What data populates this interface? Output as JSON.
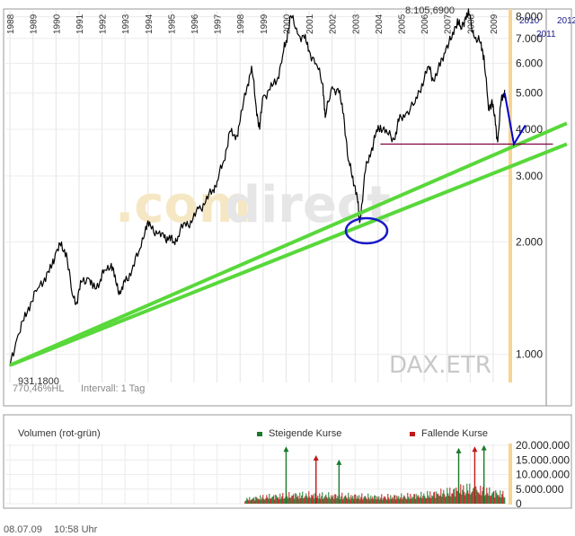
{
  "chart_data": [
    {
      "type": "line",
      "title": "",
      "watermark": {
        "part1": ".com",
        "part2": "direct"
      },
      "instrument": "DAX.ETR",
      "scale": "log",
      "ylim": [
        850,
        8300
      ],
      "y_ticks": [
        {
          "value": 1000,
          "label": "1.000"
        },
        {
          "value": 2000,
          "label": "2.000"
        },
        {
          "value": 3000,
          "label": "3.000"
        },
        {
          "value": 4000,
          "label": "4.000"
        },
        {
          "value": 5000,
          "label": "5.000"
        },
        {
          "value": 6000,
          "label": "6.000"
        },
        {
          "value": 7000,
          "label": "7.000"
        },
        {
          "value": 8000,
          "label": "8.000"
        }
      ],
      "x_year_labels": [
        "1988",
        "1989",
        "1990",
        "1991",
        "1992",
        "1993",
        "1994",
        "1995",
        "1996",
        "1997",
        "1998",
        "1999",
        "2000",
        "2001",
        "2002",
        "2003",
        "2004",
        "2005",
        "2006",
        "2007",
        "2008",
        "2009"
      ],
      "future_year_labels": [
        "2010",
        "2011",
        "2012"
      ],
      "high_label": "8.105,6900",
      "low_label": "931,1800",
      "footer_left": "770,46%HL",
      "footer_interval": "Intervall: 1 Tag",
      "grid": true,
      "series": [
        {
          "color": "#000000",
          "points": [
            [
              1988.0,
              931
            ],
            [
              1988.3,
              1100
            ],
            [
              1988.6,
              1230
            ],
            [
              1988.9,
              1380
            ],
            [
              1989.2,
              1500
            ],
            [
              1989.5,
              1600
            ],
            [
              1989.8,
              1700
            ],
            [
              1990.0,
              1880
            ],
            [
              1990.2,
              1950
            ],
            [
              1990.45,
              1870
            ],
            [
              1990.7,
              1450
            ],
            [
              1990.9,
              1380
            ],
            [
              1991.1,
              1560
            ],
            [
              1991.4,
              1600
            ],
            [
              1991.6,
              1500
            ],
            [
              1991.9,
              1560
            ],
            [
              1992.1,
              1680
            ],
            [
              1992.4,
              1750
            ],
            [
              1992.6,
              1560
            ],
            [
              1992.8,
              1450
            ],
            [
              1993.0,
              1560
            ],
            [
              1993.3,
              1680
            ],
            [
              1993.6,
              1880
            ],
            [
              1993.9,
              2200
            ],
            [
              1994.1,
              2220
            ],
            [
              1994.4,
              2100
            ],
            [
              1994.7,
              2050
            ],
            [
              1994.9,
              2050
            ],
            [
              1995.1,
              2000
            ],
            [
              1995.3,
              2070
            ],
            [
              1995.6,
              2250
            ],
            [
              1995.9,
              2250
            ],
            [
              1996.2,
              2450
            ],
            [
              1996.5,
              2550
            ],
            [
              1996.8,
              2750
            ],
            [
              1997.0,
              2900
            ],
            [
              1997.3,
              3300
            ],
            [
              1997.55,
              3950
            ],
            [
              1997.8,
              3750
            ],
            [
              1998.0,
              4200
            ],
            [
              1998.3,
              5200
            ],
            [
              1998.5,
              5900
            ],
            [
              1998.7,
              4600
            ],
            [
              1998.85,
              4000
            ],
            [
              1999.0,
              4900
            ],
            [
              1999.3,
              5100
            ],
            [
              1999.6,
              5400
            ],
            [
              1999.85,
              6300
            ],
            [
              2000.0,
              6900
            ],
            [
              2000.2,
              8050
            ],
            [
              2000.5,
              7200
            ],
            [
              2000.8,
              7000
            ],
            [
              2001.0,
              6500
            ],
            [
              2001.3,
              6000
            ],
            [
              2001.6,
              5300
            ],
            [
              2001.7,
              4300
            ],
            [
              2002.0,
              5200
            ],
            [
              2002.3,
              5000
            ],
            [
              2002.5,
              4400
            ],
            [
              2002.7,
              3300
            ],
            [
              2002.9,
              3000
            ],
            [
              2003.1,
              2600
            ],
            [
              2003.2,
              2250
            ],
            [
              2003.45,
              3100
            ],
            [
              2003.7,
              3500
            ],
            [
              2003.9,
              3900
            ],
            [
              2004.1,
              4100
            ],
            [
              2004.4,
              3900
            ],
            [
              2004.7,
              3750
            ],
            [
              2004.9,
              4200
            ],
            [
              2005.2,
              4400
            ],
            [
              2005.6,
              4700
            ],
            [
              2005.9,
              5300
            ],
            [
              2006.2,
              5900
            ],
            [
              2006.4,
              5400
            ],
            [
              2006.7,
              5900
            ],
            [
              2006.95,
              6600
            ],
            [
              2007.2,
              7000
            ],
            [
              2007.45,
              7900
            ],
            [
              2007.6,
              7400
            ],
            [
              2007.8,
              8000
            ],
            [
              2007.95,
              8100
            ],
            [
              2008.2,
              7000
            ],
            [
              2008.45,
              6800
            ],
            [
              2008.6,
              6300
            ],
            [
              2008.8,
              4500
            ],
            [
              2008.95,
              4800
            ],
            [
              2009.1,
              4100
            ],
            [
              2009.2,
              3700
            ],
            [
              2009.35,
              4800
            ],
            [
              2009.5,
              5100
            ]
          ]
        },
        {
          "color": "#58d83a",
          "points": [
            [
              1988.0,
              935
            ],
            [
              2012.2,
              4150
            ]
          ]
        },
        {
          "color": "#58d83a",
          "points": [
            [
              1988.1,
              940
            ],
            [
              2012.2,
              3650
            ]
          ]
        },
        {
          "color": "#800040",
          "points": [
            [
              2004.1,
              3650
            ],
            [
              2011.6,
              3650
            ]
          ]
        },
        {
          "color": "#0000cc",
          "points": [
            [
              2009.5,
              5000
            ],
            [
              2009.9,
              3650
            ],
            [
              2010.4,
              4100
            ]
          ]
        }
      ]
    },
    {
      "type": "bar",
      "title": "Volumen (rot-grün)",
      "legend": [
        {
          "name": "Steigende Kurse",
          "color": "#1a7a2a"
        },
        {
          "name": "Fallende Kurse",
          "color": "#c01818"
        }
      ],
      "ylim": [
        0,
        20000
      ],
      "y_ticks": [
        {
          "value": 0,
          "label": "0"
        },
        {
          "value": 5000,
          "label": "5.000.000"
        },
        {
          "value": 10000,
          "label": "10.000.000"
        },
        {
          "value": 15000,
          "label": "15.000.000"
        },
        {
          "value": 20000,
          "label": "20.000.000"
        }
      ],
      "volume_start_year": 1998.2,
      "volume_levels": [
        [
          1998.2,
          1500
        ],
        [
          1999.0,
          2300
        ],
        [
          2000.0,
          2800
        ],
        [
          2000.5,
          3000
        ],
        [
          2001.0,
          3000
        ],
        [
          2002.0,
          2700
        ],
        [
          2003.0,
          2600
        ],
        [
          2004.0,
          2300
        ],
        [
          2005.0,
          2500
        ],
        [
          2006.0,
          3000
        ],
        [
          2007.0,
          4000
        ],
        [
          2007.8,
          5200
        ],
        [
          2008.5,
          4500
        ],
        [
          2009.0,
          3800
        ],
        [
          2009.5,
          3200
        ]
      ],
      "spikes": [
        {
          "x": 2000.0,
          "value": 19000,
          "dir": "up"
        },
        {
          "x": 2001.3,
          "value": 16000,
          "dir": "down"
        },
        {
          "x": 2002.3,
          "value": 14500,
          "dir": "up"
        },
        {
          "x": 2007.5,
          "value": 18500,
          "dir": "up"
        },
        {
          "x": 2008.2,
          "value": 19000,
          "dir": "down"
        },
        {
          "x": 2008.6,
          "value": 19500,
          "dir": "up"
        }
      ]
    }
  ],
  "footer": {
    "date": "08.07.09",
    "time": "10:58 Uhr"
  }
}
